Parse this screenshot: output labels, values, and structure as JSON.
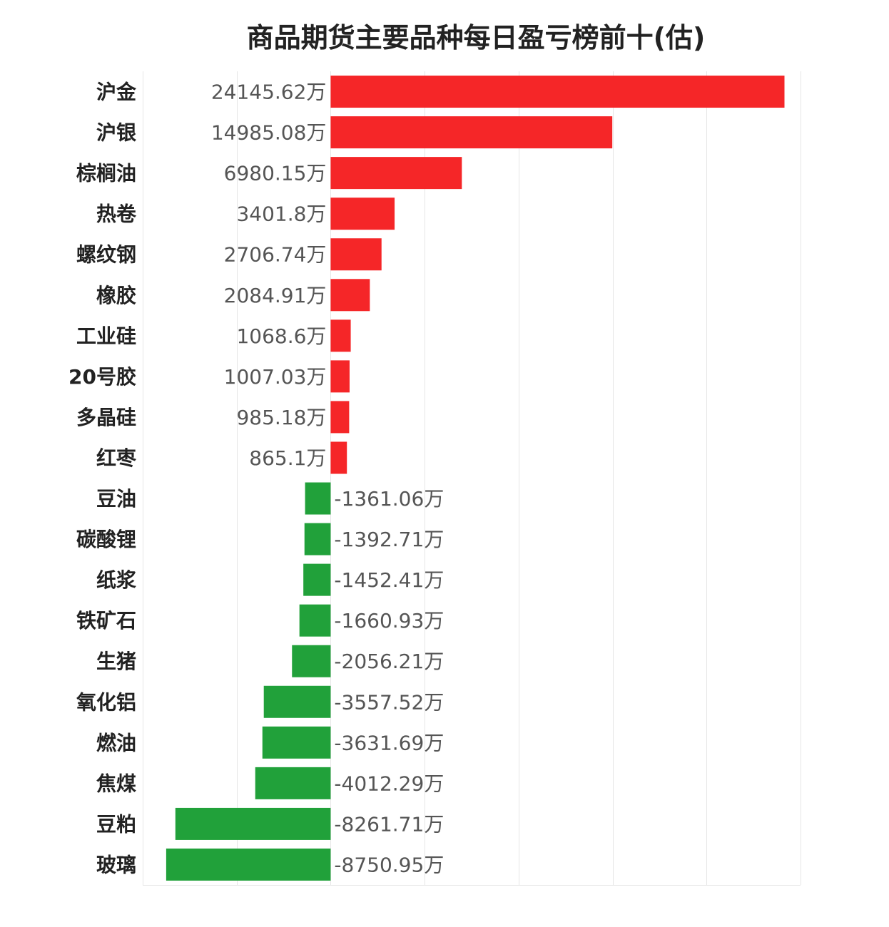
{
  "chart_data": {
    "type": "bar",
    "orientation": "horizontal",
    "title": "商品期货主要品种每日盈亏榜前十(估)",
    "unit": "万",
    "categories": [
      "沪金",
      "沪银",
      "棕榈油",
      "热卷",
      "螺纹钢",
      "橡胶",
      "工业硅",
      "20号胶",
      "多晶硅",
      "红枣",
      "豆油",
      "碳酸锂",
      "纸浆",
      "铁矿石",
      "生猪",
      "氧化铝",
      "燃油",
      "焦煤",
      "豆粕",
      "玻璃"
    ],
    "values": [
      24145.62,
      14985.08,
      6980.15,
      3401.8,
      2706.74,
      2084.91,
      1068.6,
      1007.03,
      985.18,
      865.1,
      -1361.06,
      -1392.71,
      -1452.41,
      -1660.93,
      -2056.21,
      -3557.52,
      -3631.69,
      -4012.29,
      -8261.71,
      -8750.95
    ],
    "value_labels": [
      "24145.62万",
      "14985.08万",
      "6980.15万",
      "3401.8万",
      "2706.74万",
      "2084.91万",
      "1068.6万",
      "1007.03万",
      "985.18万",
      "865.1万",
      "-1361.06万",
      "-1392.71万",
      "-1452.41万",
      "-1660.93万",
      "-2056.21万",
      "-3557.52万",
      "-3631.69万",
      "-4012.29万",
      "-8261.71万",
      "-8750.95万"
    ],
    "xlim": [
      -10000,
      25000
    ],
    "grid": true,
    "colors": {
      "positive": "#f52628",
      "negative": "#21a13a"
    }
  }
}
